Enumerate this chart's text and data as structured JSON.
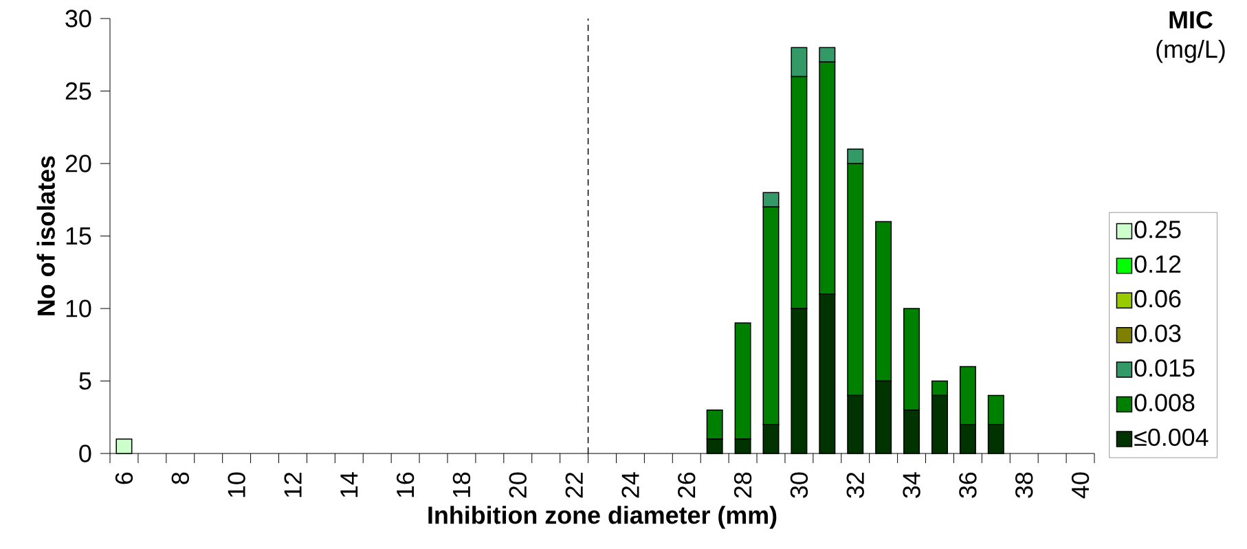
{
  "chart_data": {
    "type": "bar",
    "stacked": true,
    "xlabel": "Inhibition zone diameter (mm)",
    "ylabel": "No of isolates",
    "legend_title": "**MIC** (mg/L)",
    "x": [
      6,
      7,
      8,
      9,
      10,
      11,
      12,
      13,
      14,
      15,
      16,
      17,
      18,
      19,
      20,
      21,
      22,
      23,
      24,
      25,
      26,
      27,
      28,
      29,
      30,
      31,
      32,
      33,
      34,
      35,
      36,
      37
    ],
    "xlim": [
      5.5,
      40.5
    ],
    "xticks": [
      6,
      8,
      10,
      12,
      14,
      16,
      18,
      20,
      22,
      24,
      26,
      28,
      30,
      32,
      34,
      36,
      38,
      40
    ],
    "ylim": [
      0,
      30
    ],
    "yticks": [
      0,
      5,
      10,
      15,
      20,
      25,
      30
    ],
    "series": [
      {
        "name": "≤0.004",
        "color": "#003300",
        "values": [
          null,
          null,
          null,
          null,
          null,
          null,
          null,
          null,
          null,
          null,
          null,
          null,
          null,
          null,
          null,
          null,
          null,
          null,
          null,
          null,
          null,
          1,
          1,
          2,
          10,
          11,
          4,
          5,
          3,
          4,
          2,
          2
        ]
      },
      {
        "name": "0.008",
        "color": "#008000",
        "values": [
          null,
          null,
          null,
          null,
          null,
          null,
          null,
          null,
          null,
          null,
          null,
          null,
          null,
          null,
          null,
          null,
          null,
          null,
          null,
          null,
          null,
          2,
          8,
          15,
          16,
          16,
          16,
          11,
          7,
          1,
          4,
          2
        ]
      },
      {
        "name": "0.015",
        "color": "#339966",
        "values": [
          null,
          null,
          null,
          null,
          null,
          null,
          null,
          null,
          null,
          null,
          null,
          null,
          null,
          null,
          null,
          null,
          null,
          null,
          null,
          null,
          null,
          null,
          null,
          1,
          2,
          1,
          1,
          null,
          null,
          null,
          null,
          null
        ]
      },
      {
        "name": "0.03",
        "color": "#808000",
        "values": [
          null,
          null,
          null,
          null,
          null,
          null,
          null,
          null,
          null,
          null,
          null,
          null,
          null,
          null,
          null,
          null,
          null,
          null,
          null,
          null,
          null,
          null,
          null,
          null,
          null,
          null,
          null,
          null,
          null,
          null,
          null,
          null
        ]
      },
      {
        "name": "0.06",
        "color": "#99cc00",
        "values": [
          null,
          null,
          null,
          null,
          null,
          null,
          null,
          null,
          null,
          null,
          null,
          null,
          null,
          null,
          null,
          null,
          null,
          null,
          null,
          null,
          null,
          null,
          null,
          null,
          null,
          null,
          null,
          null,
          null,
          null,
          null,
          null
        ]
      },
      {
        "name": "0.12",
        "color": "#00ff00",
        "values": [
          null,
          null,
          null,
          null,
          null,
          null,
          null,
          null,
          null,
          null,
          null,
          null,
          null,
          null,
          null,
          null,
          null,
          null,
          null,
          null,
          null,
          null,
          null,
          null,
          null,
          null,
          null,
          null,
          null,
          null,
          null,
          null
        ]
      },
      {
        "name": "0.25",
        "color": "#ccffcc",
        "values": [
          1,
          null,
          null,
          null,
          null,
          null,
          null,
          null,
          null,
          null,
          null,
          null,
          null,
          null,
          null,
          null,
          null,
          null,
          null,
          null,
          null,
          null,
          null,
          null,
          null,
          null,
          null,
          null,
          null,
          null,
          null,
          null
        ]
      }
    ],
    "ref_lines": [
      {
        "axis": "x",
        "value": 22.5,
        "color": "#000000",
        "line_style": "dashed"
      }
    ],
    "legend": "right",
    "grid": false
  }
}
